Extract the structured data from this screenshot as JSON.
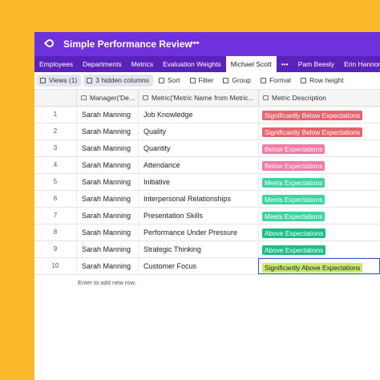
{
  "header": {
    "title": "Simple Performance Review",
    "menu": "•••"
  },
  "tabs": [
    "Employees",
    "Departments",
    "Metrics",
    "Evaluation Weights",
    "Michael Scott",
    "•••",
    "Pam Beesly",
    "Erin Hannon"
  ],
  "active_tab": 4,
  "toolbar": [
    "Views (1)",
    "3 hidden columns",
    "Sort",
    "Filter",
    "Group",
    "Format",
    "Row height"
  ],
  "table": {
    "columns": [
      "Manager('De...",
      "Metric('Metric Name from Metric...",
      "Metric Description"
    ],
    "rows": [
      {
        "number": 1,
        "manager": "Sarah Manning",
        "metric": "Job Knowledge",
        "description": "Significantly Below Expectations",
        "color": "#e8646c"
      },
      {
        "number": 2,
        "manager": "Sarah Manning",
        "metric": "Quality",
        "description": "Significantly Below Expectations",
        "color": "#e8646c"
      },
      {
        "number": 3,
        "manager": "Sarah Manning",
        "metric": "Quantity",
        "description": "Below Expectations",
        "color": "#f27ba6"
      },
      {
        "number": 4,
        "manager": "Sarah Manning",
        "metric": "Attendance",
        "description": "Below Expectations",
        "color": "#f27ba6"
      },
      {
        "number": 5,
        "manager": "Sarah Manning",
        "metric": "Initiative",
        "description": "Meets Expectations",
        "color": "#3fd3a2"
      },
      {
        "number": 6,
        "manager": "Sarah Manning",
        "metric": "Interpersonal Relationships",
        "description": "Meets Expectations",
        "color": "#3fd3a2"
      },
      {
        "number": 7,
        "manager": "Sarah Manning",
        "metric": "Presentation Skills",
        "description": "Meets Expectations",
        "color": "#3fd3a2"
      },
      {
        "number": 8,
        "manager": "Sarah Manning",
        "metric": "Performance Under Pressure",
        "description": "Above Expectations",
        "color": "#1fbd86"
      },
      {
        "number": 9,
        "manager": "Sarah Manning",
        "metric": "Strategic Thinking",
        "description": "Above Expectations",
        "color": "#1fbd86"
      },
      {
        "number": 10,
        "manager": "Sarah Manning",
        "metric": "Customer Focus",
        "description": "Significantly Above Expectations",
        "color": "#c6ea6c"
      }
    ],
    "footer": "Enter to add new row."
  }
}
